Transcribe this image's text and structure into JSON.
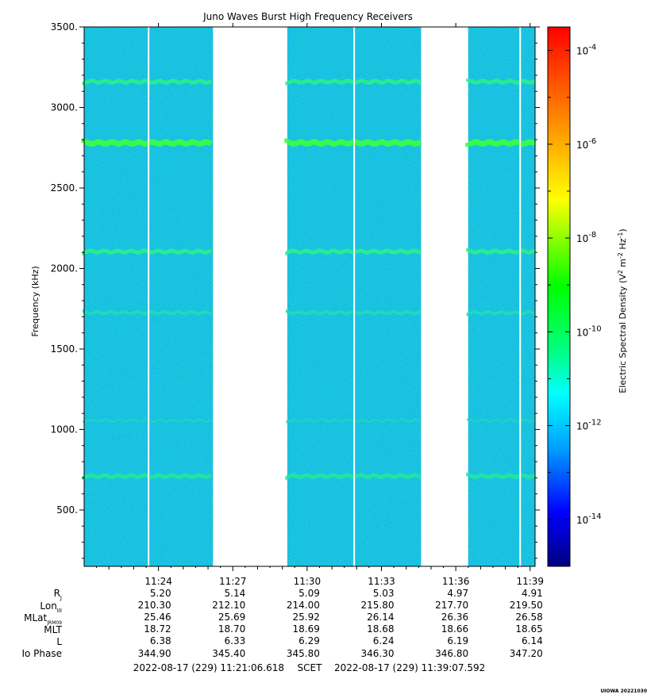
{
  "chart_data": {
    "type": "heatmap",
    "title": "Juno Waves Burst High Frequency Receivers",
    "ylabel": "Frequency (kHz)",
    "yticks": [
      "500.",
      "1000.",
      "1500.",
      "2000.",
      "2500.",
      "3000.",
      "3500."
    ],
    "ytick_values": [
      500,
      1000,
      1500,
      2000,
      2500,
      3000,
      3500
    ],
    "ylim": [
      150,
      3500
    ],
    "xticks": [
      "11:24",
      "11:27",
      "11:30",
      "11:33",
      "11:36",
      "11:39"
    ],
    "xtick_minutes": [
      3.0,
      6.0,
      9.0,
      12.0,
      15.0,
      18.0
    ],
    "xlim_minutes": [
      0.0,
      18.2
    ],
    "data_segments_minutes": [
      [
        0.0,
        5.2
      ],
      [
        8.2,
        13.6
      ],
      [
        15.5,
        18.2
      ]
    ],
    "white_lines_minutes": [
      2.6,
      10.9,
      17.6
    ],
    "emission_bands_khz": [
      {
        "freq": 3160,
        "level": "10^-10"
      },
      {
        "freq": 2780,
        "level": "10^-9.5"
      },
      {
        "freq": 2105,
        "level": "10^-10"
      },
      {
        "freq": 1725,
        "level": "10^-11"
      },
      {
        "freq": 1055,
        "level": "10^-11.5"
      },
      {
        "freq": 710,
        "level": "10^-10.5"
      }
    ],
    "background_level": "10^-12",
    "colorbar": {
      "label": "Electric Spectral Density (V² m⁻² Hz⁻¹)",
      "label_main": "Electric Spectral Density (V",
      "label_sup1": "2",
      "label_mid": " m",
      "label_sup2": "-2",
      "label_mid2": " Hz",
      "label_sup3": "-1",
      "label_end": ")",
      "scale": "log",
      "range_exponents": [
        -15,
        -3.5
      ],
      "tick_base": "10",
      "tick_exponents": [
        "-4",
        "-6",
        "-8",
        "-10",
        "-12",
        "-14"
      ],
      "colors": [
        "#000080",
        "#0000ff",
        "#00a0ff",
        "#00ffff",
        "#00ff00",
        "#ffff00",
        "#ff8000",
        "#ff0000"
      ]
    },
    "ephemeris": {
      "row_labels": {
        "rj": "R",
        "rj_sub": "J",
        "lon": "Lon",
        "lon_sub": "III",
        "mlat": "MLat",
        "mlat_sub": "JRM09",
        "mlt": "MLT",
        "l": "L",
        "io": "Io Phase"
      },
      "rows": [
        [
          "5.20",
          "5.14",
          "5.09",
          "5.03",
          "4.97",
          "4.91"
        ],
        [
          "210.30",
          "212.10",
          "214.00",
          "215.80",
          "217.70",
          "219.50"
        ],
        [
          "25.46",
          "25.69",
          "25.92",
          "26.14",
          "26.36",
          "26.58"
        ],
        [
          "18.72",
          "18.70",
          "18.69",
          "18.68",
          "18.66",
          "18.65"
        ],
        [
          "6.38",
          "6.33",
          "6.29",
          "6.24",
          "6.19",
          "6.14"
        ],
        [
          "344.90",
          "345.40",
          "345.80",
          "346.30",
          "346.80",
          "347.20"
        ]
      ]
    },
    "time_range": {
      "start": "2022-08-17 (229) 11:21:06.618",
      "label": "SCET",
      "end": "2022-08-17 (229) 11:39:07.592"
    },
    "credit": "UIOWA 20221030"
  }
}
